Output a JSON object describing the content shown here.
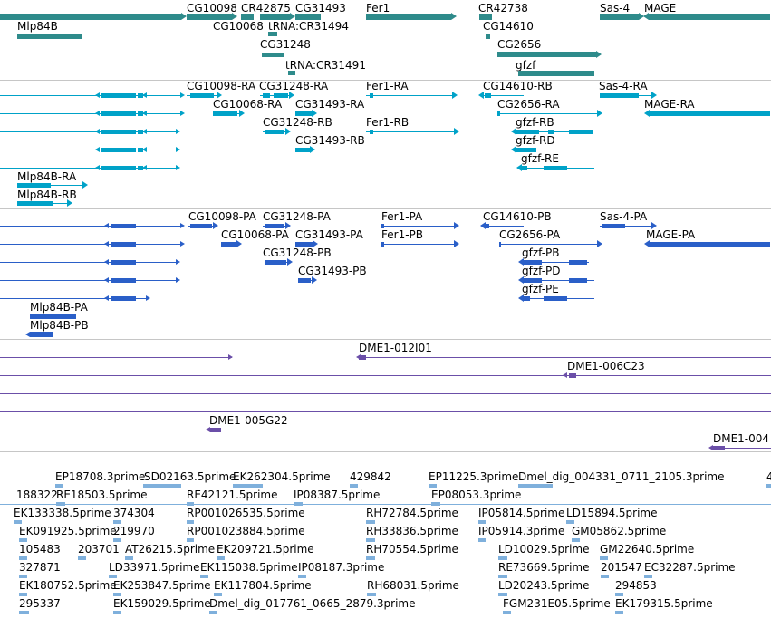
{
  "colors": {
    "gene": "#2e8b8b",
    "rna_cyan": "#00a2c8",
    "protein_blue": "#2a5fc8",
    "clone_purple": "#6b4fa8",
    "est_light": "#7fb0dc",
    "separator": "#c6c6c6"
  },
  "gene_track": {
    "labels": [
      "CG10098",
      "CR42875",
      "CG31493",
      "Fer1",
      "CR42738",
      "Sas-4",
      "MAGE",
      "Mlp84B",
      "CG10068",
      "tRNA:CR31494",
      "CG14610",
      "CG31248",
      "CG2656",
      "tRNA:CR31491",
      "gfzf"
    ],
    "features": [
      {
        "name": "MAGE",
        "strand": "-"
      },
      {
        "name": "gfzf",
        "strand": "-"
      },
      {
        "name": "CG14610",
        "strand": "-"
      }
    ]
  },
  "rna_track": {
    "labels": [
      "CG10098-RA",
      "CG31248-RA",
      "Fer1-RA",
      "CG14610-RB",
      "Sas-4-RA",
      "CG10068-RA",
      "CG31493-RA",
      "CG2656-RA",
      "MAGE-RA",
      "CG31248-RB",
      "Fer1-RB",
      "gfzf-RB",
      "CG31493-RB",
      "gfzf-RD",
      "gfzf-RE",
      "Mlp84B-RA",
      "Mlp84B-RB"
    ]
  },
  "protein_track": {
    "labels": [
      "CG10098-PA",
      "CG31248-PA",
      "Fer1-PA",
      "CG14610-PB",
      "Sas-4-PA",
      "CG10068-PA",
      "CG31493-PA",
      "Fer1-PB",
      "CG2656-PA",
      "MAGE-PA",
      "CG31248-PB",
      "gfzf-PB",
      "CG31493-PB",
      "gfzf-PD",
      "gfzf-PE",
      "Mlp84B-PA",
      "Mlp84B-PB"
    ]
  },
  "clone_track": {
    "labels": [
      "DME1-012I01",
      "DME1-006C23",
      "DME1-005G22",
      "DME1-004"
    ]
  },
  "est_track": {
    "labels": [
      "EP18708.3prime",
      "SD02163.5prime",
      "EK262304.5prime",
      "429842",
      "EP11225.3prime",
      "Dmel_dig_004331_0711_2105.3prime",
      "4",
      "188322",
      "RE18503.5prime",
      "RE42121.5prime",
      "IP08387.5prime",
      "EP08053.3prime",
      "EK133338.5prime",
      "374304",
      "RP001026535.5prime",
      "RH72784.5prime",
      "IP05814.5prime",
      "LD15894.5prime",
      "EK091925.5prime",
      "219970",
      "RP001023884.5prime",
      "RH33836.5prime",
      "IP05914.3prime",
      "GM05862.5prime",
      "105483",
      "203701",
      "AT26215.5prime",
      "EK209721.5prime",
      "RH70554.5prime",
      "LD10029.5prime",
      "GM22640.5prime",
      "327871",
      "LD33971.5prime",
      "EK115038.5prime",
      "IP08187.3prime",
      "RE73669.5prime",
      "201547",
      "EC32287.5prime",
      "EK180752.5prime",
      "EK253847.5prime",
      "EK117804.5prime",
      "RH68031.5prime",
      "LD20243.5prime",
      "294853",
      "295337",
      "EK159029.5prime",
      "Dmel_dig_017761_0665_2879.3prime",
      "FGM231E05.5prime",
      "EK179315.5prime"
    ]
  }
}
